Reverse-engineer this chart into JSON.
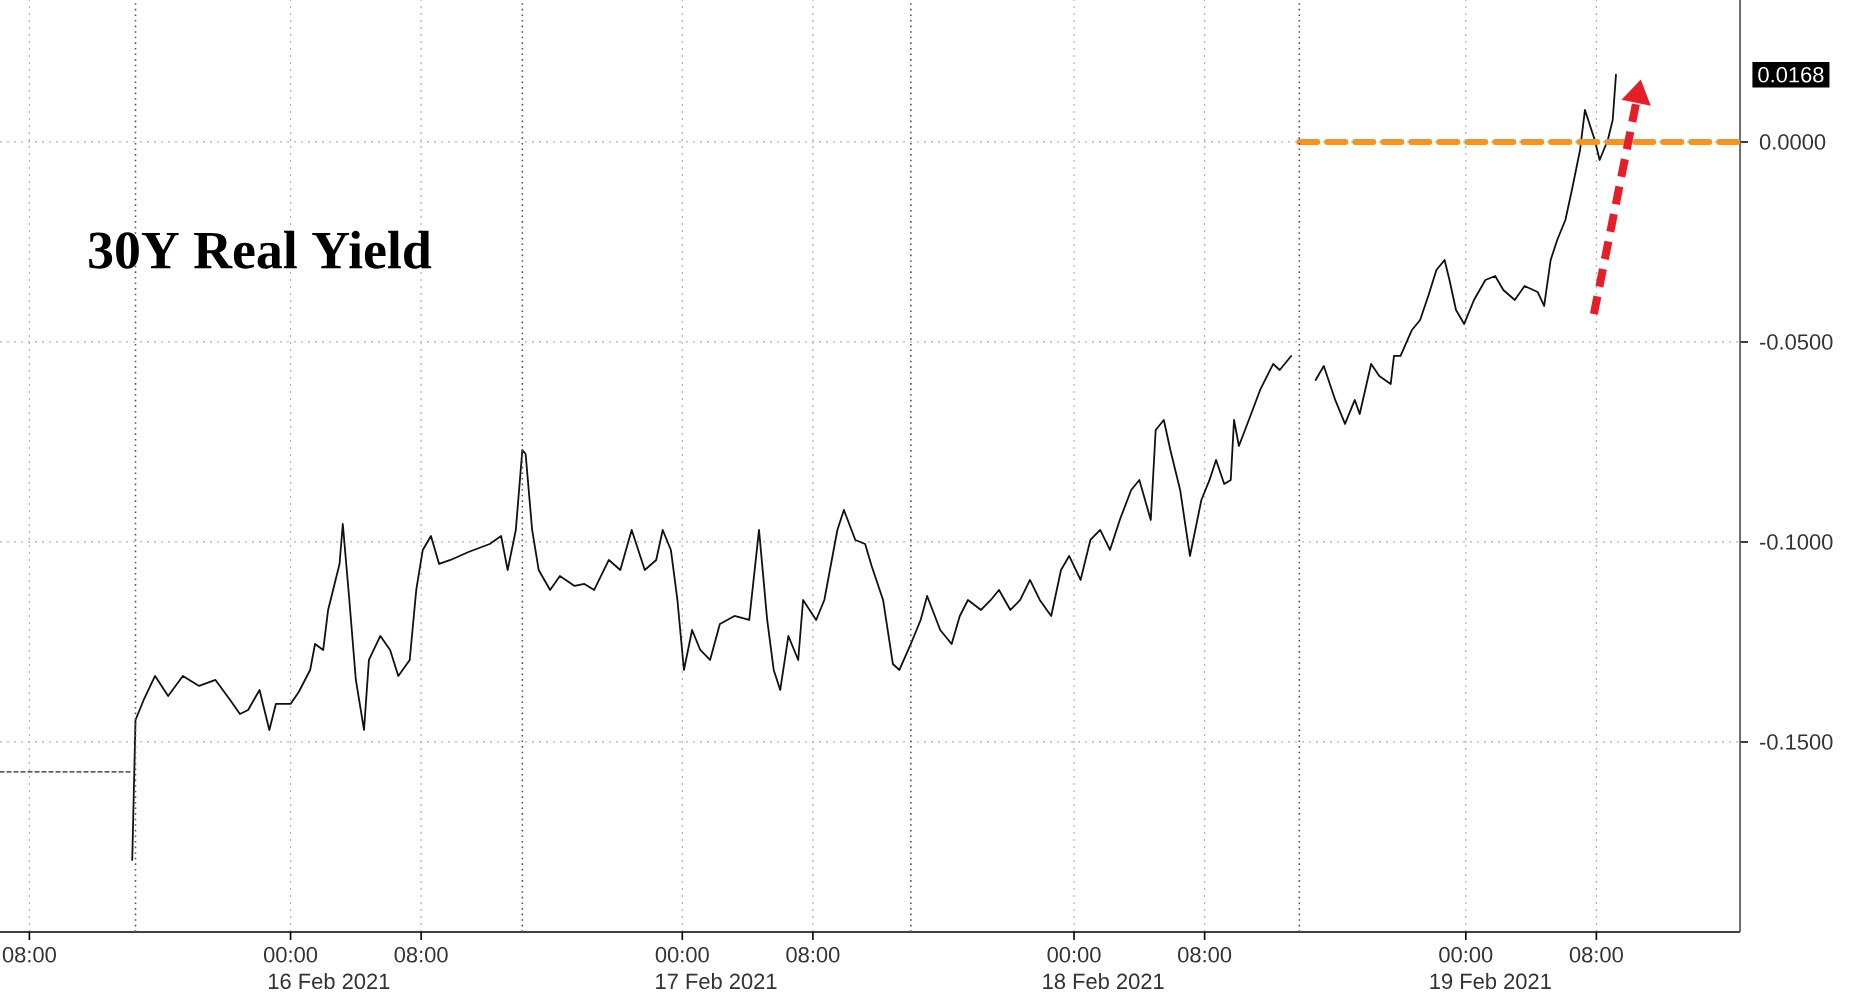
{
  "chart_data": {
    "type": "line",
    "title": "30Y Real Yield",
    "xlim": [
      "2021-02-15T06:12",
      "2021-02-19T16:48"
    ],
    "ylim": [
      -0.1975,
      0.0355
    ],
    "xticks": [
      {
        "value": "2021-02-15T08:00",
        "label": "08:00"
      },
      {
        "value": "2021-02-16T00:00",
        "label": "00:00"
      },
      {
        "value": "2021-02-16T08:00",
        "label": "08:00"
      },
      {
        "value": "2021-02-17T00:00",
        "label": "00:00"
      },
      {
        "value": "2021-02-17T08:00",
        "label": "08:00"
      },
      {
        "value": "2021-02-18T00:00",
        "label": "00:00"
      },
      {
        "value": "2021-02-18T08:00",
        "label": "08:00"
      },
      {
        "value": "2021-02-19T00:00",
        "label": "00:00"
      },
      {
        "value": "2021-02-19T08:00",
        "label": "08:00"
      }
    ],
    "yticks": [
      {
        "value": -0.15,
        "label": "-0.1500"
      },
      {
        "value": -0.1,
        "label": "-0.1000"
      },
      {
        "value": -0.05,
        "label": "-0.0500"
      },
      {
        "value": 0,
        "label": "0.0000"
      },
      {
        "value": 0.0168,
        "label": "0.0168"
      }
    ],
    "grid": true,
    "annotations": [
      "16 Feb 2021",
      "17 Feb 2021",
      "18 Feb 2021",
      "19 Feb 2021"
    ],
    "ref_lines": [
      {
        "axis": "x",
        "value": "2021-02-15T14:30",
        "color": "#555555",
        "line_style": "dotted"
      },
      {
        "axis": "x",
        "value": "2021-02-16T14:12",
        "color": "#555555",
        "line_style": "dotted"
      },
      {
        "axis": "x",
        "value": "2021-02-17T14:00",
        "color": "#555555",
        "line_style": "dotted"
      },
      {
        "axis": "x",
        "value": "2021-02-18T13:48",
        "color": "#555555",
        "line_style": "dotted"
      }
    ],
    "series": [
      {
        "color": "#111111",
        "line_style": "solid",
        "x": [
          "2021-02-15T14:18",
          "2021-02-15T14:30",
          "2021-02-15T15:00",
          "2021-02-15T15:42",
          "2021-02-15T16:30",
          "2021-02-15T17:24",
          "2021-02-15T18:24",
          "2021-02-15T19:24",
          "2021-02-15T20:18",
          "2021-02-15T20:54",
          "2021-02-15T21:24",
          "2021-02-15T22:06",
          "2021-02-15T22:42",
          "2021-02-15T23:06",
          "2021-02-16T00:00",
          "2021-02-16T00:30",
          "2021-02-16T01:12",
          "2021-02-16T01:30",
          "2021-02-16T02:00",
          "2021-02-16T02:18",
          "2021-02-16T03:00",
          "2021-02-16T03:12",
          "2021-02-16T03:36",
          "2021-02-16T04:00",
          "2021-02-16T04:30",
          "2021-02-16T04:48",
          "2021-02-16T05:30",
          "2021-02-16T06:06",
          "2021-02-16T06:36",
          "2021-02-16T07:18",
          "2021-02-16T07:42",
          "2021-02-16T08:06",
          "2021-02-16T08:36",
          "2021-02-16T09:06",
          "2021-02-16T09:48",
          "2021-02-16T10:54",
          "2021-02-16T12:12",
          "2021-02-16T12:54",
          "2021-02-16T13:18",
          "2021-02-16T13:48",
          "2021-02-16T14:12",
          "2021-02-16T14:24",
          "2021-02-16T14:48",
          "2021-02-16T15:12",
          "2021-02-16T15:54",
          "2021-02-16T16:30",
          "2021-02-16T17:24",
          "2021-02-16T18:00",
          "2021-02-16T18:36",
          "2021-02-16T19:30",
          "2021-02-16T20:12",
          "2021-02-16T20:54",
          "2021-02-16T21:42",
          "2021-02-16T22:24",
          "2021-02-16T22:48",
          "2021-02-16T23:18",
          "2021-02-16T23:42",
          "2021-02-17T00:06",
          "2021-02-17T00:36",
          "2021-02-17T01:06",
          "2021-02-17T01:42",
          "2021-02-17T02:18",
          "2021-02-17T03:12",
          "2021-02-17T04:06",
          "2021-02-17T04:42",
          "2021-02-17T05:12",
          "2021-02-17T05:36",
          "2021-02-17T06:00",
          "2021-02-17T06:30",
          "2021-02-17T07:06",
          "2021-02-17T07:24",
          "2021-02-17T08:12",
          "2021-02-17T08:42",
          "2021-02-17T09:30",
          "2021-02-17T09:54",
          "2021-02-17T10:36",
          "2021-02-17T11:12",
          "2021-02-17T11:36",
          "2021-02-17T12:18",
          "2021-02-17T12:54",
          "2021-02-17T13:18",
          "2021-02-17T14:00",
          "2021-02-17T14:36",
          "2021-02-17T15:00",
          "2021-02-17T15:48",
          "2021-02-17T16:30",
          "2021-02-17T17:00",
          "2021-02-17T17:30",
          "2021-02-17T18:18",
          "2021-02-17T18:54",
          "2021-02-17T19:24",
          "2021-02-17T20:06",
          "2021-02-17T20:42",
          "2021-02-17T21:18",
          "2021-02-17T21:54",
          "2021-02-17T22:36",
          "2021-02-17T23:12",
          "2021-02-17T23:42",
          "2021-02-18T00:24",
          "2021-02-18T01:00",
          "2021-02-18T01:36",
          "2021-02-18T02:12",
          "2021-02-18T02:48",
          "2021-02-18T03:30",
          "2021-02-18T04:00",
          "2021-02-18T04:42",
          "2021-02-18T05:00",
          "2021-02-18T05:30",
          "2021-02-18T05:54",
          "2021-02-18T06:30",
          "2021-02-18T07:06",
          "2021-02-18T07:48",
          "2021-02-18T08:18",
          "2021-02-18T08:42",
          "2021-02-18T09:12",
          "2021-02-18T09:36",
          "2021-02-18T09:48",
          "2021-02-18T10:06",
          "2021-02-18T10:48",
          "2021-02-18T11:24",
          "2021-02-18T12:12",
          "2021-02-18T12:36",
          "2021-02-18T13:18",
          "2021-02-18T14:06",
          "2021-02-18T14:48",
          "2021-02-18T15:18",
          "2021-02-18T16:00",
          "2021-02-18T16:36",
          "2021-02-18T17:12",
          "2021-02-18T17:30",
          "2021-02-18T18:12",
          "2021-02-18T18:42",
          "2021-02-18T19:24",
          "2021-02-18T19:36",
          "2021-02-18T20:00",
          "2021-02-18T20:42",
          "2021-02-18T21:12",
          "2021-02-18T21:42",
          "2021-02-18T22:12",
          "2021-02-18T22:42",
          "2021-02-18T23:00",
          "2021-02-18T23:24",
          "2021-02-18T23:54",
          "2021-02-19T00:30",
          "2021-02-19T01:12",
          "2021-02-19T01:48",
          "2021-02-19T02:18",
          "2021-02-19T03:00",
          "2021-02-19T03:36",
          "2021-02-19T04:24",
          "2021-02-19T04:48",
          "2021-02-19T05:12",
          "2021-02-19T05:36",
          "2021-02-19T06:06",
          "2021-02-19T06:30",
          "2021-02-19T07:00",
          "2021-02-19T07:18",
          "2021-02-19T07:30",
          "2021-02-19T07:54",
          "2021-02-19T08:12",
          "2021-02-19T08:42",
          "2021-02-19T09:00",
          "2021-02-19T09:12"
        ],
        "values": [
          -0.1795,
          -0.1445,
          -0.1395,
          -0.1335,
          -0.1385,
          -0.1335,
          -0.136,
          -0.1345,
          -0.1395,
          -0.143,
          -0.142,
          -0.137,
          -0.147,
          -0.1405,
          -0.1405,
          -0.1375,
          -0.132,
          -0.1255,
          -0.127,
          -0.117,
          -0.1055,
          -0.0955,
          -0.1145,
          -0.1345,
          -0.147,
          -0.1295,
          -0.1235,
          -0.127,
          -0.1335,
          -0.1295,
          -0.112,
          -0.102,
          -0.0985,
          -0.1055,
          -0.1045,
          -0.1025,
          -0.1005,
          -0.0985,
          -0.107,
          -0.097,
          -0.077,
          -0.078,
          -0.097,
          -0.107,
          -0.112,
          -0.1085,
          -0.111,
          -0.1105,
          -0.112,
          -0.1045,
          -0.107,
          -0.097,
          -0.107,
          -0.1045,
          -0.097,
          -0.102,
          -0.1145,
          -0.132,
          -0.122,
          -0.127,
          -0.1295,
          -0.1205,
          -0.1185,
          -0.1195,
          -0.097,
          -0.1195,
          -0.132,
          -0.137,
          -0.1235,
          -0.1295,
          -0.1145,
          -0.1195,
          -0.1145,
          -0.097,
          -0.092,
          -0.0995,
          -0.1005,
          -0.106,
          -0.1145,
          -0.1305,
          -0.132,
          -0.1255,
          -0.1195,
          -0.1135,
          -0.122,
          -0.1255,
          -0.1185,
          -0.1145,
          -0.117,
          -0.1145,
          -0.112,
          -0.117,
          -0.1145,
          -0.1095,
          -0.1145,
          -0.1185,
          -0.107,
          -0.1035,
          -0.1095,
          -0.0995,
          -0.097,
          -0.102,
          -0.0945,
          -0.087,
          -0.0845,
          -0.0945,
          -0.072,
          -0.0695,
          -0.077,
          -0.087,
          -0.1035,
          -0.0895,
          -0.0845,
          -0.0795,
          -0.0855,
          -0.0845,
          -0.0695,
          -0.076,
          -0.0685,
          -0.062,
          -0.0555,
          -0.057,
          -0.0535,
          null,
          -0.0595,
          -0.056,
          -0.0645,
          -0.0705,
          -0.0645,
          -0.068,
          -0.0555,
          -0.0585,
          -0.0605,
          -0.0535,
          -0.0535,
          -0.047,
          -0.0445,
          -0.0385,
          -0.032,
          -0.0295,
          -0.0345,
          -0.042,
          -0.0455,
          -0.0395,
          -0.0345,
          -0.0335,
          -0.037,
          -0.0395,
          -0.036,
          -0.0375,
          -0.041,
          -0.0295,
          -0.0245,
          -0.0195,
          -0.012,
          -0.002,
          0.008,
          0.0055,
          0.0005,
          -0.0045,
          0.0005,
          0.0055,
          0.0168
        ]
      },
      {
        "color": "#222222",
        "line_style": "dashed",
        "x": [
          "2021-02-15T06:12",
          "2021-02-15T14:12"
        ],
        "values": [
          -0.1575,
          -0.1575
        ]
      },
      {
        "color": "#f7941d",
        "line_style": "dashed",
        "x": [
          "2021-02-18T13:48",
          "2021-02-19T16:48"
        ],
        "values": [
          0,
          0
        ]
      }
    ]
  }
}
